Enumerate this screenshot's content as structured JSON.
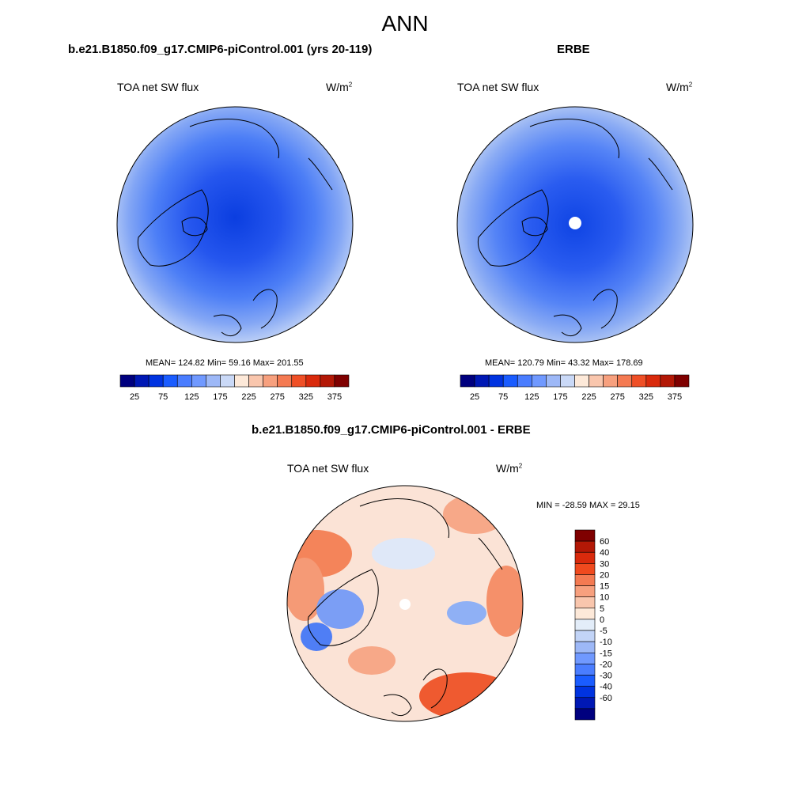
{
  "title": "ANN",
  "panels": [
    {
      "title": "b.e21.B1850.f09_g17.CMIP6-piControl.001 (yrs 20-119)",
      "left_label": "TOA net SW flux",
      "units": "W/m",
      "units_sup": "2",
      "stats": "MEAN= 124.82  Min=  59.16  Max= 201.55"
    },
    {
      "title": "ERBE",
      "left_label": "TOA net SW flux",
      "units": "W/m",
      "units_sup": "2",
      "stats": "MEAN= 120.79  Min=  43.32  Max= 178.69"
    },
    {
      "title": "b.e21.B1850.f09_g17.CMIP6-piControl.001 - ERBE",
      "left_label": "TOA net SW flux",
      "units": "W/m",
      "units_sup": "2",
      "stats": "MIN = -28.59 MAX =  29.15"
    }
  ],
  "colorbar_abs": {
    "colors": [
      "#00007f",
      "#0018b4",
      "#0033e0",
      "#1a5cff",
      "#4a7dff",
      "#7099ff",
      "#9db8f7",
      "#cad9f7",
      "#fde9d9",
      "#f9c6ad",
      "#f7a07e",
      "#f47a52",
      "#ef4f26",
      "#d92a0c",
      "#b31806",
      "#7f0000"
    ],
    "labels": [
      "25",
      "75",
      "125",
      "175",
      "225",
      "275",
      "325",
      "375"
    ]
  },
  "colorbar_diff": {
    "colors": [
      "#7f0000",
      "#b31806",
      "#d92a0c",
      "#f04a1e",
      "#f47a52",
      "#f7a07e",
      "#f9c6ad",
      "#fde9d9",
      "#e3edf9",
      "#c2d4f7",
      "#9db8f7",
      "#7099ff",
      "#4a7dff",
      "#1a5cff",
      "#0033e0",
      "#0018b4",
      "#00007f"
    ],
    "labels": [
      "60",
      "40",
      "30",
      "20",
      "15",
      "10",
      "5",
      "0",
      "-5",
      "-10",
      "-15",
      "-20",
      "-30",
      "-40",
      "-60"
    ]
  }
}
